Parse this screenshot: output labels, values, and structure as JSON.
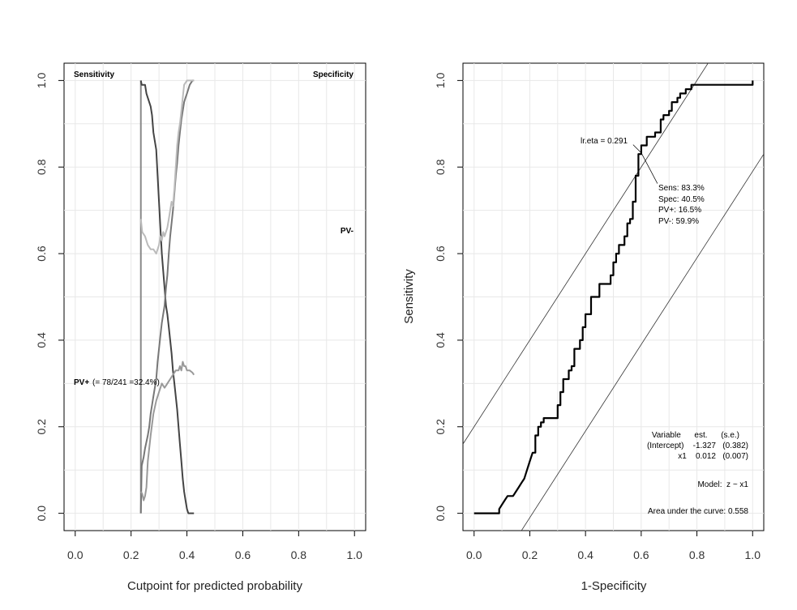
{
  "chart_data": [
    {
      "type": "line",
      "xlabel": "Cutpoint for predicted probability",
      "ylabel": "",
      "xlim": [
        -0.04,
        1.04
      ],
      "ylim": [
        -0.04,
        1.04
      ],
      "xticks": [
        0.0,
        0.2,
        0.4,
        0.6,
        0.8,
        1.0
      ],
      "yticks": [
        0.0,
        0.2,
        0.4,
        0.6,
        0.8,
        1.0
      ],
      "tick_labels": [
        "0.0",
        "0.2",
        "0.4",
        "0.6",
        "0.8",
        "1.0"
      ],
      "grid": true,
      "labels": {
        "sensitivity": "Sensitivity",
        "specificity": "Specificity",
        "pv_minus": "PV-",
        "pv_plus": "PV+",
        "pv_plus_detail": "(= 78/241 =32.4%)"
      },
      "series": [
        {
          "name": "Sensitivity",
          "color": "#444444",
          "x": [
            0.235,
            0.238,
            0.25,
            0.255,
            0.26,
            0.27,
            0.275,
            0.28,
            0.29,
            0.295,
            0.3,
            0.305,
            0.31,
            0.315,
            0.32,
            0.325,
            0.33,
            0.335,
            0.34,
            0.345,
            0.35,
            0.355,
            0.36,
            0.365,
            0.37,
            0.375,
            0.38,
            0.385,
            0.39,
            0.395,
            0.4,
            0.405,
            0.41,
            0.42,
            0.425
          ],
          "values": [
            1.0,
            0.99,
            0.99,
            0.97,
            0.96,
            0.94,
            0.92,
            0.88,
            0.84,
            0.78,
            0.72,
            0.66,
            0.6,
            0.56,
            0.52,
            0.48,
            0.46,
            0.43,
            0.4,
            0.37,
            0.33,
            0.3,
            0.27,
            0.24,
            0.2,
            0.16,
            0.12,
            0.08,
            0.05,
            0.03,
            0.01,
            0.0,
            0.0,
            0.0,
            0.0
          ]
        },
        {
          "name": "Specificity",
          "color": "#777777",
          "x": [
            0.235,
            0.238,
            0.245,
            0.25,
            0.26,
            0.265,
            0.27,
            0.28,
            0.29,
            0.295,
            0.3,
            0.305,
            0.31,
            0.315,
            0.32,
            0.325,
            0.33,
            0.335,
            0.34,
            0.345,
            0.35,
            0.355,
            0.36,
            0.365,
            0.37,
            0.375,
            0.38,
            0.385,
            0.39,
            0.395,
            0.4,
            0.405,
            0.41,
            0.42,
            0.425
          ],
          "values": [
            0.0,
            0.11,
            0.13,
            0.15,
            0.18,
            0.2,
            0.23,
            0.27,
            0.31,
            0.35,
            0.38,
            0.41,
            0.44,
            0.46,
            0.48,
            0.52,
            0.55,
            0.6,
            0.64,
            0.67,
            0.7,
            0.74,
            0.78,
            0.81,
            0.85,
            0.88,
            0.91,
            0.93,
            0.95,
            0.96,
            0.97,
            0.98,
            0.99,
            1.0,
            1.0
          ]
        },
        {
          "name": "PV+",
          "color": "#999999",
          "x": [
            0.235,
            0.24,
            0.245,
            0.25,
            0.255,
            0.26,
            0.27,
            0.28,
            0.29,
            0.3,
            0.31,
            0.32,
            0.33,
            0.34,
            0.35,
            0.36,
            0.37,
            0.375,
            0.38,
            0.385,
            0.39,
            0.395,
            0.4,
            0.41,
            0.42,
            0.425
          ],
          "values": [
            0.05,
            0.045,
            0.03,
            0.04,
            0.06,
            0.12,
            0.18,
            0.23,
            0.26,
            0.28,
            0.3,
            0.29,
            0.3,
            0.31,
            0.32,
            0.33,
            0.33,
            0.34,
            0.33,
            0.35,
            0.34,
            0.34,
            0.33,
            0.33,
            0.325,
            0.32
          ]
        },
        {
          "name": "PV-",
          "color": "#bbbbbb",
          "x": [
            0.235,
            0.24,
            0.25,
            0.26,
            0.27,
            0.28,
            0.29,
            0.3,
            0.305,
            0.31,
            0.315,
            0.32,
            0.33,
            0.335,
            0.34,
            0.345,
            0.35,
            0.355,
            0.36,
            0.365,
            0.37,
            0.375,
            0.38,
            0.385,
            0.39,
            0.4,
            0.41,
            0.42,
            0.425
          ],
          "values": [
            0.68,
            0.65,
            0.64,
            0.62,
            0.61,
            0.61,
            0.6,
            0.62,
            0.64,
            0.63,
            0.65,
            0.64,
            0.66,
            0.68,
            0.7,
            0.72,
            0.71,
            0.75,
            0.8,
            0.85,
            0.88,
            0.9,
            0.93,
            0.96,
            0.99,
            1.0,
            1.0,
            1.0,
            1.0
          ]
        }
      ],
      "verticals": [
        {
          "x": 0.235,
          "color": "#888888"
        }
      ]
    },
    {
      "type": "line",
      "xlabel": "1-Specificity",
      "ylabel": "Sensitivity",
      "xlim": [
        -0.04,
        1.04
      ],
      "ylim": [
        -0.04,
        1.04
      ],
      "xticks": [
        0.0,
        0.2,
        0.4,
        0.6,
        0.8,
        1.0
      ],
      "yticks": [
        0.0,
        0.2,
        0.4,
        0.6,
        0.8,
        1.0
      ],
      "tick_labels": [
        "0.0",
        "0.2",
        "0.4",
        "0.6",
        "0.8",
        "1.0"
      ],
      "grid": true,
      "series": [
        {
          "name": "ROC",
          "color": "#000000",
          "x": [
            0.0,
            0.09,
            0.09,
            0.1,
            0.11,
            0.12,
            0.13,
            0.14,
            0.15,
            0.16,
            0.17,
            0.18,
            0.19,
            0.2,
            0.21,
            0.22,
            0.22,
            0.23,
            0.23,
            0.24,
            0.24,
            0.25,
            0.25,
            0.26,
            0.26,
            0.3,
            0.3,
            0.31,
            0.31,
            0.32,
            0.32,
            0.34,
            0.34,
            0.35,
            0.35,
            0.36,
            0.36,
            0.38,
            0.38,
            0.39,
            0.39,
            0.4,
            0.4,
            0.42,
            0.42,
            0.45,
            0.45,
            0.49,
            0.49,
            0.5,
            0.5,
            0.51,
            0.51,
            0.52,
            0.52,
            0.54,
            0.54,
            0.55,
            0.55,
            0.56,
            0.56,
            0.57,
            0.57,
            0.58,
            0.58,
            0.59,
            0.59,
            0.6,
            0.6,
            0.62,
            0.62,
            0.65,
            0.65,
            0.67,
            0.67,
            0.68,
            0.68,
            0.7,
            0.7,
            0.71,
            0.71,
            0.73,
            0.73,
            0.74,
            0.74,
            0.76,
            0.76,
            0.78,
            0.78,
            0.8,
            0.8,
            1.0,
            1.0
          ],
          "values": [
            0.0,
            0.0,
            0.01,
            0.02,
            0.03,
            0.04,
            0.04,
            0.04,
            0.05,
            0.06,
            0.07,
            0.08,
            0.1,
            0.12,
            0.14,
            0.14,
            0.18,
            0.18,
            0.2,
            0.2,
            0.21,
            0.21,
            0.22,
            0.22,
            0.22,
            0.22,
            0.25,
            0.25,
            0.28,
            0.28,
            0.31,
            0.31,
            0.33,
            0.33,
            0.34,
            0.34,
            0.38,
            0.38,
            0.4,
            0.4,
            0.43,
            0.43,
            0.46,
            0.46,
            0.5,
            0.5,
            0.53,
            0.53,
            0.55,
            0.55,
            0.58,
            0.58,
            0.6,
            0.6,
            0.62,
            0.62,
            0.64,
            0.64,
            0.67,
            0.67,
            0.68,
            0.68,
            0.72,
            0.72,
            0.78,
            0.78,
            0.83,
            0.83,
            0.85,
            0.85,
            0.87,
            0.87,
            0.88,
            0.88,
            0.91,
            0.91,
            0.92,
            0.92,
            0.93,
            0.93,
            0.95,
            0.95,
            0.96,
            0.96,
            0.97,
            0.97,
            0.98,
            0.98,
            0.99,
            0.99,
            0.99,
            0.99,
            1.0
          ]
        }
      ],
      "reference_lines": [
        {
          "intercept": 0.2,
          "slope": 1.0
        },
        {
          "intercept": -0.21,
          "slope": 1.0
        }
      ],
      "optimal_point": {
        "x": 0.6,
        "y": 0.833
      },
      "annotations": {
        "lr_eta": "lr.eta = 0.291",
        "sens": "Sens: 83.3%",
        "spec": "Spec: 40.5%",
        "pv_plus": "PV+: 16.5%",
        "pv_minus": "PV-: 59.9%",
        "table_header": "Variable      est.      (s.e.)",
        "table_row1": "(Intercept)    -1.327   (0.382)",
        "table_row2": "x1    0.012   (0.007)",
        "model": "Model:  z ~ x1",
        "auc": "Area under the curve: 0.558"
      }
    }
  ]
}
